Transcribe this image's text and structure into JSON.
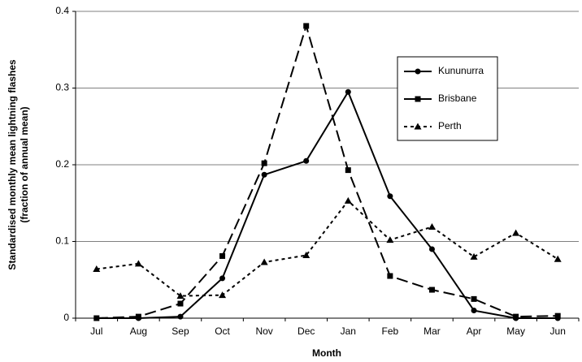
{
  "chart_data": {
    "type": "line",
    "xlabel": "Month",
    "ylabel": [
      "Standardised monthly mean lightning flashes",
      "(fraction of annual mean)"
    ],
    "categories": [
      "Jul",
      "Aug",
      "Sep",
      "Oct",
      "Nov",
      "Dec",
      "Jan",
      "Feb",
      "Mar",
      "Apr",
      "May",
      "Jun"
    ],
    "series": [
      {
        "name": "Kununurra",
        "color": "#000000",
        "dash": "none",
        "marker": "circle",
        "values": [
          0,
          0,
          0.002,
          0.052,
          0.187,
          0.205,
          0.295,
          0.159,
          0.09,
          0.01,
          0,
          0
        ]
      },
      {
        "name": "Brisbane",
        "color": "#000000",
        "dash": "14 6",
        "marker": "square",
        "values": [
          0,
          0.002,
          0.019,
          0.081,
          0.202,
          0.381,
          0.193,
          0.055,
          0.037,
          0.025,
          0.002,
          0.003
        ]
      },
      {
        "name": "Perth",
        "color": "#000000",
        "dash": "4 4",
        "marker": "triangle",
        "values": [
          0.064,
          0.071,
          0.029,
          0.03,
          0.073,
          0.082,
          0.153,
          0.102,
          0.119,
          0.08,
          0.111,
          0.077
        ]
      }
    ],
    "ylim": [
      0,
      0.4
    ],
    "yticks": [
      0,
      0.1,
      0.2,
      0.3,
      0.4
    ],
    "grid": true
  }
}
